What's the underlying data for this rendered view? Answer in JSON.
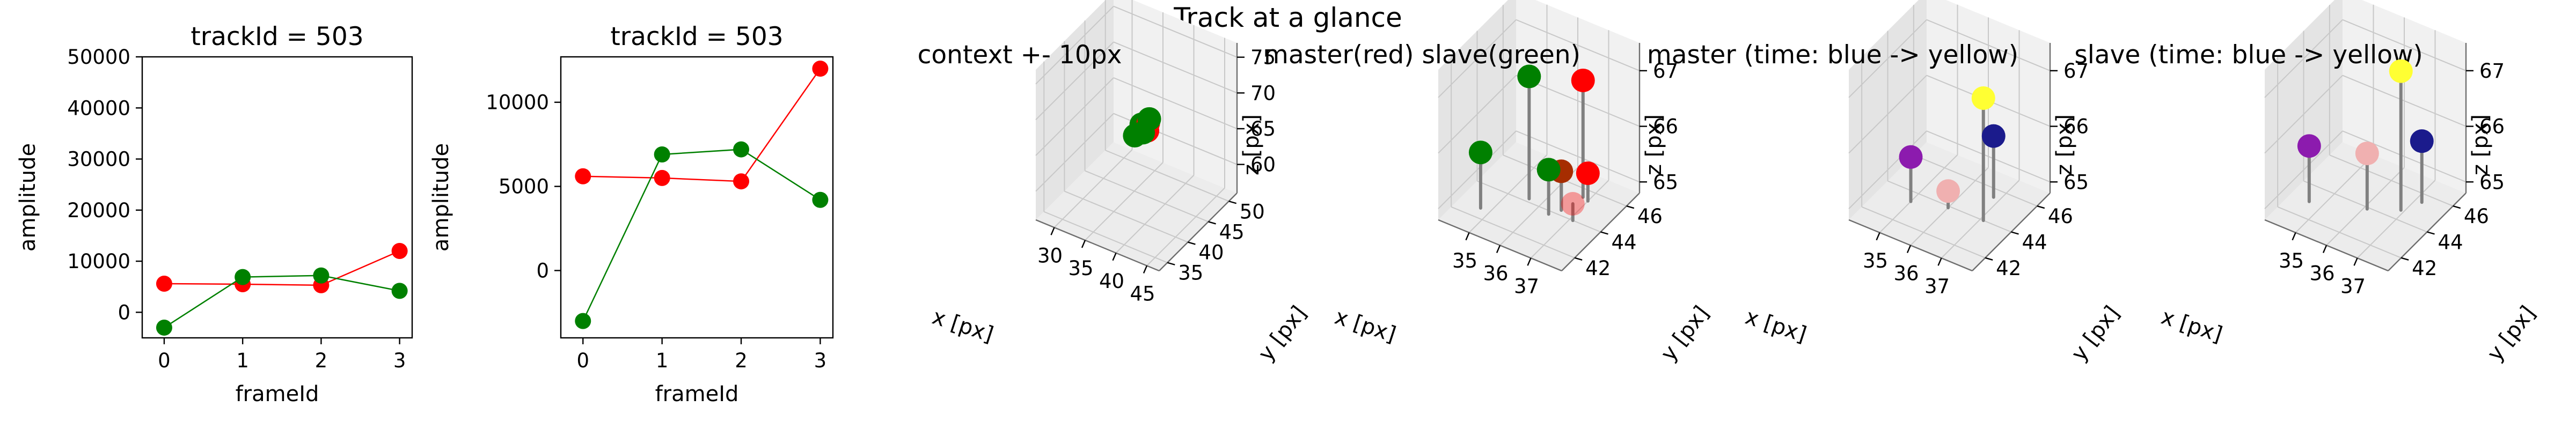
{
  "figure_title": "Track at a glance",
  "chart_data": [
    {
      "type": "line",
      "title": "trackId = 503",
      "xlabel": "frameId",
      "ylabel": "amplitude",
      "x": [
        0,
        1,
        2,
        3
      ],
      "xticks": [
        "0",
        "1",
        "2",
        "3"
      ],
      "ylim": [
        -5000,
        50000
      ],
      "yticks": [
        0,
        10000,
        20000,
        30000,
        40000,
        50000
      ],
      "grid": false,
      "series": [
        {
          "color": "#ff0000",
          "values": [
            5600,
            5500,
            5300,
            12000
          ]
        },
        {
          "color": "#008000",
          "values": [
            -3000,
            6900,
            7200,
            4200
          ]
        }
      ]
    },
    {
      "type": "line",
      "title": "trackId = 503",
      "xlabel": "frameId",
      "ylabel": "amplitude",
      "x": [
        0,
        1,
        2,
        3
      ],
      "xticks": [
        "0",
        "1",
        "2",
        "3"
      ],
      "ylim": [
        -4000,
        12700
      ],
      "yticks": [
        0,
        5000,
        10000
      ],
      "grid": false,
      "series": [
        {
          "color": "#ff0000",
          "values": [
            5600,
            5500,
            5300,
            12000
          ]
        },
        {
          "color": "#008000",
          "values": [
            -3000,
            6900,
            7200,
            4200
          ]
        }
      ]
    },
    {
      "type": "scatter",
      "projection": "3d",
      "title": "context +- 10px",
      "xlabel": "x [px]",
      "ylabel": "y [px]",
      "zlabel": "z [px]",
      "xlim": [
        27,
        47
      ],
      "ylim": [
        33,
        52
      ],
      "zlim": [
        56,
        77
      ],
      "xticks": [
        30,
        35,
        40,
        45
      ],
      "yticks": [
        35,
        40,
        45,
        50
      ],
      "zticks": [
        60,
        65,
        70,
        75
      ],
      "points": [
        {
          "x": 36.6,
          "y": 44.3,
          "z": 66.3,
          "color": "#008000"
        },
        {
          "x": 36.8,
          "y": 45.5,
          "z": 64.8,
          "color": "#ff0000"
        },
        {
          "x": 37.0,
          "y": 45.4,
          "z": 66.0,
          "color": "#ff0000"
        },
        {
          "x": 37.1,
          "y": 44.0,
          "z": 65.5,
          "color": "#008000"
        },
        {
          "x": 37.3,
          "y": 45.2,
          "z": 66.8,
          "color": "#008000"
        },
        {
          "x": 36.4,
          "y": 43.0,
          "z": 65.4,
          "color": "#008000"
        }
      ]
    },
    {
      "type": "scatter",
      "projection": "3d",
      "title": "master(red) slave(green)",
      "xlabel": "x [px]",
      "ylabel": "y [px]",
      "zlabel": "z [px]",
      "xlim": [
        34,
        38
      ],
      "ylim": [
        41,
        47
      ],
      "zlim": [
        64.8,
        67.5
      ],
      "xticks": [
        35,
        36,
        37
      ],
      "yticks": [
        42,
        44,
        46
      ],
      "zticks": [
        65,
        66,
        67
      ],
      "stem_color": "#808080",
      "series": [
        {
          "name": "master",
          "color": "#ff0000",
          "points": [
            {
              "x": 36.6,
              "y": 44.3,
              "z": 65.5,
              "alpha": 1.0
            },
            {
              "x": 36.8,
              "y": 45.5,
              "z": 66.9,
              "alpha": 1.0
            },
            {
              "x": 37.0,
              "y": 45.4,
              "z": 65.3,
              "alpha": 1.0
            },
            {
              "x": 37.1,
              "y": 44.0,
              "z": 65.1,
              "alpha": 0.35
            }
          ]
        },
        {
          "name": "slave",
          "color": "#008000",
          "points": [
            {
              "x": 36.6,
              "y": 44.3,
              "z": 65.5,
              "alpha": 0.35
            },
            {
              "x": 35.6,
              "y": 44.2,
              "z": 67.0,
              "alpha": 1.0
            },
            {
              "x": 34.7,
              "y": 42.6,
              "z": 65.8,
              "alpha": 1.0
            },
            {
              "x": 36.4,
              "y": 43.8,
              "z": 65.6,
              "alpha": 1.0
            }
          ]
        }
      ]
    },
    {
      "type": "scatter",
      "projection": "3d",
      "title": "master (time: blue -> yellow)",
      "xlabel": "x [px]",
      "ylabel": "y [px]",
      "zlabel": "z [px]",
      "xlim": [
        34,
        38
      ],
      "ylim": [
        41,
        47
      ],
      "zlim": [
        64.8,
        67.5
      ],
      "xticks": [
        35,
        36,
        37
      ],
      "yticks": [
        42,
        44,
        46
      ],
      "zticks": [
        65,
        66,
        67
      ],
      "colormap": [
        "#1b1b8c",
        "#8c1bae",
        "#f0b0b0",
        "#ffff33"
      ],
      "points": [
        {
          "x": 36.8,
          "y": 45.5,
          "z": 65.9,
          "color": "#1b1b8c"
        },
        {
          "x": 35.0,
          "y": 43.4,
          "z": 65.6,
          "color": "#8c1bae"
        },
        {
          "x": 36.0,
          "y": 43.9,
          "z": 65.1,
          "color": "#f0b0b0"
        },
        {
          "x": 37.1,
          "y": 44.0,
          "z": 67.0,
          "color": "#ffff33"
        }
      ]
    },
    {
      "type": "scatter",
      "projection": "3d",
      "title": "slave (time: blue -> yellow)",
      "xlabel": "x [px]",
      "ylabel": "y [px]",
      "zlabel": "z [px]",
      "xlim": [
        34,
        38
      ],
      "ylim": [
        41,
        47
      ],
      "zlim": [
        64.8,
        67.5
      ],
      "xticks": [
        35,
        36,
        37
      ],
      "yticks": [
        42,
        44,
        46
      ],
      "zticks": [
        65,
        66,
        67
      ],
      "colormap": [
        "#1b1b8c",
        "#8c1bae",
        "#f0b0b0",
        "#ffff33"
      ],
      "points": [
        {
          "x": 37.2,
          "y": 45.5,
          "z": 65.9,
          "color": "#1b1b8c"
        },
        {
          "x": 34.6,
          "y": 43.0,
          "z": 65.8,
          "color": "#8c1bae"
        },
        {
          "x": 36.1,
          "y": 43.9,
          "z": 65.8,
          "color": "#f0b0b0"
        },
        {
          "x": 36.9,
          "y": 44.6,
          "z": 67.3,
          "color": "#ffff33"
        }
      ]
    }
  ]
}
